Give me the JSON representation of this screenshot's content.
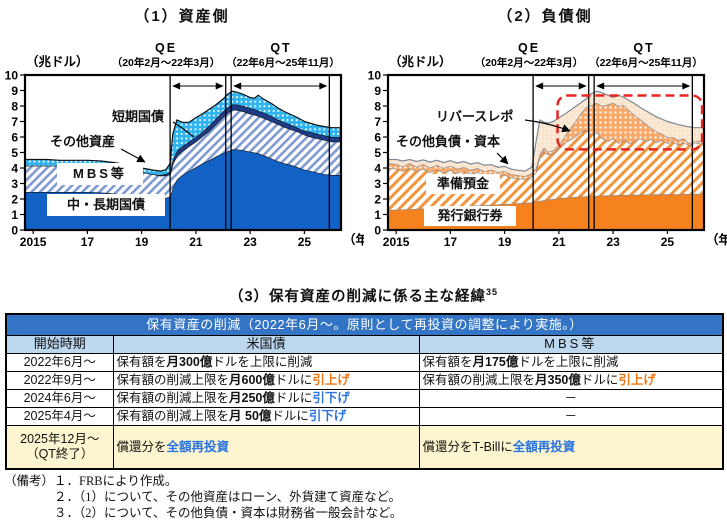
{
  "palette": {
    "table_header_blue": "#3474c4",
    "table_header_light_blue": "#bdd7ee",
    "table_highlight_yellow": "#fdf5cf",
    "raise_orange": "#f07818",
    "lower_blue": "#2b74e4",
    "asset_bond_blue": "#1261c4",
    "asset_hatch_blue": "#7e9ad2",
    "asset_tbill_navy": "#1e3c86",
    "asset_other_cyan": "#2fb4ef",
    "liab_note_orange": "#f5821e",
    "liab_hatch_orange": "#f2943a",
    "liab_repo_orange": "#f9a868",
    "liab_other_peach": "#fae4cb",
    "liab_line_gray": "#7d8798",
    "highlight_red": "#e8251f"
  },
  "chart_data": [
    {
      "type": "area",
      "id": "asset",
      "title": "（1）資産側",
      "unit": "（兆ドル）",
      "x_suffix": "（年）",
      "ylim": [
        0,
        10
      ],
      "xlim": [
        2014.7,
        2026.35
      ],
      "line_color": "#101010",
      "y_ticks": [
        {
          "v": 0,
          "l": "0"
        },
        {
          "v": 1,
          "l": "1"
        },
        {
          "v": 2,
          "l": "2"
        },
        {
          "v": 3,
          "l": "3"
        },
        {
          "v": 4,
          "l": "4"
        },
        {
          "v": 5,
          "l": "5"
        },
        {
          "v": 6,
          "l": "6"
        },
        {
          "v": 7,
          "l": "7"
        },
        {
          "v": 8,
          "l": "8"
        },
        {
          "v": 9,
          "l": "9"
        },
        {
          "v": 10,
          "l": "10"
        }
      ],
      "x_ticks": [
        {
          "v": 2015,
          "l": "2015"
        },
        {
          "v": 2017,
          "l": "17"
        },
        {
          "v": 2019,
          "l": "19"
        },
        {
          "v": 2021,
          "l": "21"
        },
        {
          "v": 2023,
          "l": "23"
        },
        {
          "v": 2025,
          "l": "25"
        }
      ],
      "events": [
        {
          "label": "QE",
          "period": "（20年2月～22年3月）",
          "start": 2020.05,
          "end": 2022.1
        },
        {
          "label": "QT",
          "period": "（22年6月～25年11月）",
          "start": 2022.3,
          "end": 2025.92
        }
      ],
      "labels": {
        "shortterm": "短期国債",
        "other": "その他資産",
        "mbs": "MBS等",
        "bonds": "中・長期国債"
      },
      "x": [
        2014.7,
        2015,
        2015.5,
        2016,
        2016.5,
        2017,
        2017.5,
        2018,
        2018.5,
        2019,
        2019.4,
        2019.7,
        2019.9,
        2020.05,
        2020.15,
        2020.3,
        2020.5,
        2020.75,
        2021,
        2021.25,
        2021.5,
        2021.75,
        2022,
        2022.2,
        2022.35,
        2022.5,
        2022.75,
        2023,
        2023.15,
        2023.3,
        2023.45,
        2023.6,
        2023.8,
        2024,
        2024.25,
        2024.5,
        2024.75,
        2025,
        2025.25,
        2025.5,
        2025.75,
        2026,
        2026.35
      ],
      "series": [
        {
          "name": "中・長期国債",
          "fill": "#1261c4",
          "values": [
            2.45,
            2.45,
            2.45,
            2.45,
            2.45,
            2.45,
            2.42,
            2.35,
            2.25,
            2.15,
            2.08,
            2.05,
            2.08,
            2.15,
            2.7,
            3.25,
            3.55,
            3.8,
            4.05,
            4.3,
            4.5,
            4.75,
            4.95,
            5.1,
            5.2,
            5.2,
            5.15,
            5.05,
            5.0,
            4.95,
            4.85,
            4.75,
            4.6,
            4.45,
            4.3,
            4.2,
            4.05,
            3.9,
            3.8,
            3.7,
            3.6,
            3.55,
            3.55
          ]
        },
        {
          "name": "MBS等",
          "fill": "hatch",
          "values": [
            4.15,
            4.15,
            4.15,
            4.15,
            4.15,
            4.15,
            4.1,
            4.0,
            3.9,
            3.75,
            3.6,
            3.5,
            3.52,
            3.58,
            4.25,
            4.8,
            5.1,
            5.4,
            5.7,
            6.05,
            6.4,
            6.85,
            7.3,
            7.6,
            7.75,
            7.75,
            7.65,
            7.5,
            7.45,
            7.35,
            7.25,
            7.15,
            7.0,
            6.85,
            6.65,
            6.5,
            6.35,
            6.15,
            6.0,
            5.9,
            5.8,
            5.7,
            5.7
          ]
        },
        {
          "name": "短期国債",
          "fill": "#1e3c86",
          "values": [
            4.15,
            4.15,
            4.15,
            4.15,
            4.15,
            4.15,
            4.1,
            4.0,
            3.9,
            3.75,
            3.6,
            3.55,
            3.62,
            3.75,
            4.5,
            5.1,
            5.4,
            5.7,
            6.0,
            6.35,
            6.75,
            7.2,
            7.65,
            7.95,
            8.1,
            8.1,
            8.0,
            7.85,
            7.8,
            7.7,
            7.6,
            7.5,
            7.35,
            7.15,
            6.95,
            6.8,
            6.6,
            6.4,
            6.3,
            6.2,
            6.1,
            6.0,
            6.0
          ]
        },
        {
          "name": "その他資産",
          "fill": "dots",
          "values": [
            4.55,
            4.55,
            4.55,
            4.5,
            4.5,
            4.5,
            4.45,
            4.35,
            4.2,
            4.0,
            3.87,
            3.8,
            3.9,
            4.3,
            6.2,
            7.1,
            6.95,
            6.95,
            7.25,
            7.5,
            7.8,
            8.1,
            8.45,
            8.8,
            8.95,
            8.9,
            8.75,
            8.55,
            8.5,
            8.7,
            8.5,
            8.35,
            8.15,
            7.9,
            7.65,
            7.45,
            7.25,
            7.0,
            6.87,
            6.75,
            6.67,
            6.6,
            6.6
          ]
        }
      ]
    },
    {
      "type": "area",
      "id": "liability",
      "title": "（2）負債側",
      "unit": "（兆ドル）",
      "x_suffix": "（年）",
      "ylim": [
        0,
        10
      ],
      "xlim": [
        2014.7,
        2026.35
      ],
      "line_color": "#7d8798",
      "y_ticks": [
        {
          "v": 0,
          "l": "0"
        },
        {
          "v": 1,
          "l": "1"
        },
        {
          "v": 2,
          "l": "2"
        },
        {
          "v": 3,
          "l": "3"
        },
        {
          "v": 4,
          "l": "4"
        },
        {
          "v": 5,
          "l": "5"
        },
        {
          "v": 6,
          "l": "6"
        },
        {
          "v": 7,
          "l": "7"
        },
        {
          "v": 8,
          "l": "8"
        },
        {
          "v": 9,
          "l": "9"
        },
        {
          "v": 10,
          "l": "10"
        }
      ],
      "x_ticks": [
        {
          "v": 2015,
          "l": "2015"
        },
        {
          "v": 2017,
          "l": "17"
        },
        {
          "v": 2019,
          "l": "19"
        },
        {
          "v": 2021,
          "l": "21"
        },
        {
          "v": 2023,
          "l": "23"
        },
        {
          "v": 2025,
          "l": "25"
        }
      ],
      "events": [
        {
          "label": "QE",
          "period": "（20年2月～22年3月）",
          "start": 2020.05,
          "end": 2022.1
        },
        {
          "label": "QT",
          "period": "（22年6月～25年11月）",
          "start": 2022.3,
          "end": 2025.92
        }
      ],
      "labels": {
        "repo": "リバースレポ",
        "other": "その他負債・資本",
        "reserves": "準備預金",
        "banknotes": "発行銀行券"
      },
      "highlight": {
        "x0": 2020.95,
        "x1": 2026.28,
        "y0": 5.2,
        "y1": 8.68
      },
      "x": [
        2014.7,
        2015,
        2015.25,
        2015.5,
        2015.75,
        2016,
        2016.25,
        2016.5,
        2016.75,
        2017,
        2017.25,
        2017.5,
        2017.75,
        2018,
        2018.25,
        2018.5,
        2018.75,
        2019,
        2019.25,
        2019.5,
        2019.75,
        2020,
        2020.15,
        2020.3,
        2020.45,
        2020.6,
        2020.8,
        2021,
        2021.2,
        2021.4,
        2021.6,
        2021.8,
        2022,
        2022.2,
        2022.4,
        2022.6,
        2022.8,
        2023,
        2023.2,
        2023.4,
        2023.6,
        2023.8,
        2024,
        2024.2,
        2024.4,
        2024.6,
        2024.8,
        2025,
        2025.2,
        2025.4,
        2025.6,
        2025.8,
        2026,
        2026.35
      ],
      "series": [
        {
          "name": "発行銀行券",
          "fill": "#f5821e",
          "values": [
            1.3,
            1.3,
            1.32,
            1.34,
            1.36,
            1.39,
            1.41,
            1.44,
            1.46,
            1.49,
            1.51,
            1.53,
            1.56,
            1.58,
            1.6,
            1.62,
            1.65,
            1.67,
            1.7,
            1.72,
            1.75,
            1.78,
            1.83,
            1.88,
            1.93,
            1.96,
            2.0,
            2.05,
            2.08,
            2.1,
            2.13,
            2.15,
            2.18,
            2.2,
            2.21,
            2.22,
            2.23,
            2.24,
            2.25,
            2.26,
            2.27,
            2.27,
            2.28,
            2.29,
            2.29,
            2.3,
            2.3,
            2.3,
            2.31,
            2.31,
            2.32,
            2.32,
            2.33,
            2.33
          ]
        },
        {
          "name": "準備預金",
          "fill": "hatch",
          "values": [
            4.0,
            3.95,
            3.8,
            4.0,
            3.78,
            3.95,
            3.72,
            3.9,
            3.7,
            3.85,
            3.68,
            3.8,
            3.62,
            3.75,
            3.55,
            3.65,
            3.48,
            3.55,
            3.38,
            3.32,
            3.28,
            3.45,
            3.7,
            4.7,
            5.1,
            4.85,
            4.95,
            5.3,
            5.6,
            5.8,
            6.0,
            6.3,
            6.45,
            6.15,
            6.3,
            5.9,
            5.7,
            5.9,
            5.6,
            5.8,
            5.6,
            5.75,
            5.9,
            5.7,
            5.85,
            5.65,
            5.8,
            5.6,
            5.7,
            5.5,
            5.65,
            5.45,
            5.6,
            5.6
          ]
        },
        {
          "name": "リバースレポ",
          "fill": "dots",
          "values": [
            4.3,
            4.25,
            4.1,
            4.3,
            4.08,
            4.25,
            4.02,
            4.2,
            4.0,
            4.15,
            3.95,
            4.05,
            3.88,
            4.0,
            3.8,
            3.9,
            3.72,
            3.8,
            3.6,
            3.52,
            3.48,
            3.65,
            3.95,
            4.9,
            5.3,
            5.05,
            5.15,
            5.5,
            6.0,
            6.5,
            7.0,
            7.5,
            7.9,
            8.05,
            8.2,
            8.0,
            8.1,
            8.2,
            8.0,
            8.05,
            7.7,
            7.4,
            7.15,
            6.85,
            6.6,
            6.35,
            6.2,
            6.0,
            6.0,
            5.8,
            5.9,
            5.6,
            5.75,
            5.75
          ]
        },
        {
          "name": "その他負債・資本",
          "fill": "peach",
          "values": [
            4.55,
            4.55,
            4.45,
            4.55,
            4.42,
            4.52,
            4.38,
            4.5,
            4.35,
            4.48,
            4.32,
            4.42,
            4.25,
            4.35,
            4.18,
            4.22,
            4.05,
            4.1,
            3.92,
            3.85,
            3.8,
            4.05,
            5.6,
            7.1,
            6.95,
            6.9,
            7.0,
            7.25,
            7.45,
            7.7,
            7.95,
            8.2,
            8.45,
            8.8,
            8.95,
            8.85,
            8.7,
            8.55,
            8.7,
            8.55,
            8.35,
            8.15,
            7.9,
            7.7,
            7.5,
            7.3,
            7.15,
            7.0,
            6.9,
            6.8,
            6.72,
            6.65,
            6.6,
            6.6
          ]
        }
      ]
    }
  ],
  "table": {
    "title": "（3）保有資産の削減に係る主な経緯",
    "title_sup": "35",
    "header": "保有資産の削減（2022年6月～。原則として再投資の調整により実施。）",
    "columns": [
      "開始時期",
      "米国債",
      "MBS等"
    ],
    "rows": [
      {
        "date": "2022年6月～",
        "us": [
          {
            "t": "保有額を"
          },
          {
            "t": "月300億",
            "b": true
          },
          {
            "t": "ドルを上限に削減"
          }
        ],
        "mbs": [
          {
            "t": "保有額を"
          },
          {
            "t": "月175億",
            "b": true
          },
          {
            "t": "ドルを上限に削減"
          }
        ]
      },
      {
        "date": "2022年9月～",
        "us": [
          {
            "t": "保有額の削減上限を"
          },
          {
            "t": "月600億",
            "b": true
          },
          {
            "t": "ドルに"
          },
          {
            "t": "引上げ",
            "c": "up",
            "b": true
          }
        ],
        "mbs": [
          {
            "t": "保有額の削減上限を"
          },
          {
            "t": "月350億",
            "b": true
          },
          {
            "t": "ドルに"
          },
          {
            "t": "引上げ",
            "c": "up",
            "b": true
          }
        ]
      },
      {
        "date": "2024年6月～",
        "us": [
          {
            "t": "保有額の削減上限を"
          },
          {
            "t": "月250億",
            "b": true
          },
          {
            "t": "ドルに"
          },
          {
            "t": "引下げ",
            "c": "down",
            "b": true
          }
        ],
        "mbs": [
          {
            "t": "－"
          }
        ]
      },
      {
        "date": "2025年4月～",
        "us": [
          {
            "t": "保有額の削減上限を"
          },
          {
            "t": "月 50億",
            "b": true
          },
          {
            "t": "ドルに"
          },
          {
            "t": "引下げ",
            "c": "down",
            "b": true
          }
        ],
        "mbs": [
          {
            "t": "－"
          }
        ]
      },
      {
        "date": "2025年12月～",
        "date2": "（QT終了）",
        "us": [
          {
            "t": "償還分を"
          },
          {
            "t": "全額再投資",
            "c": "down",
            "b": true
          }
        ],
        "mbs": [
          {
            "t": "償還分をT-Billに"
          },
          {
            "t": "全額再投資",
            "c": "down",
            "b": true
          }
        ]
      }
    ]
  },
  "notes": [
    "（備考）１．FRBにより作成。",
    "２．（1）について、その他資産はローン、外貨建て資産など。",
    "３．（2）について、その他負債・資本は財務省一般会計など。"
  ]
}
